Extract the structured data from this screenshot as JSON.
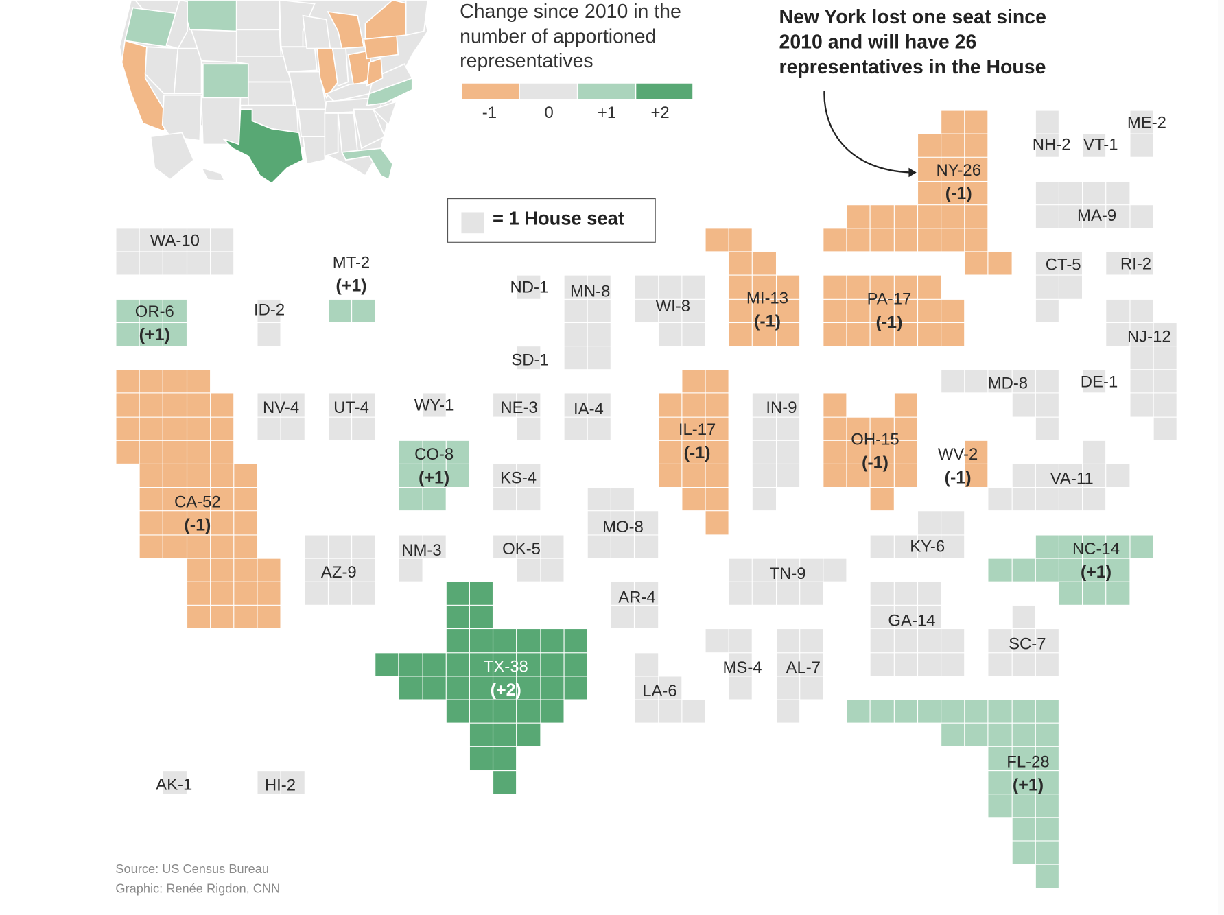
{
  "colors": {
    "minus1": "#f2b887",
    "zero": "#e4e4e4",
    "plus1": "#abd4bc",
    "plus2": "#58a874",
    "tile_border": "#ffffff"
  },
  "legend": {
    "title": "Change since 2010 in the number of apportioned representatives",
    "items": [
      {
        "label": "-1",
        "change": -1
      },
      {
        "label": "0",
        "change": 0
      },
      {
        "label": "+1",
        "change": 1
      },
      {
        "label": "+2",
        "change": 2
      }
    ],
    "seat_key": "= 1 House seat"
  },
  "annotation": {
    "text": "New York lost one seat since 2010 and will have 26 representatives in the House"
  },
  "states": [
    {
      "abbr": "WA",
      "seats": 10,
      "change": 0,
      "label": "WA-10"
    },
    {
      "abbr": "OR",
      "seats": 6,
      "change": 1,
      "label": "OR-6",
      "change_label": "(+1)"
    },
    {
      "abbr": "ID",
      "seats": 2,
      "change": 0,
      "label": "ID-2"
    },
    {
      "abbr": "MT",
      "seats": 2,
      "change": 1,
      "label": "MT-2",
      "change_label": "(+1)"
    },
    {
      "abbr": "CA",
      "seats": 52,
      "change": -1,
      "label": "CA-52",
      "change_label": "(-1)"
    },
    {
      "abbr": "NV",
      "seats": 4,
      "change": 0,
      "label": "NV-4"
    },
    {
      "abbr": "UT",
      "seats": 4,
      "change": 0,
      "label": "UT-4"
    },
    {
      "abbr": "WY",
      "seats": 1,
      "change": 0,
      "label": "WY-1"
    },
    {
      "abbr": "CO",
      "seats": 8,
      "change": 1,
      "label": "CO-8",
      "change_label": "(+1)"
    },
    {
      "abbr": "AZ",
      "seats": 9,
      "change": 0,
      "label": "AZ-9"
    },
    {
      "abbr": "NM",
      "seats": 3,
      "change": 0,
      "label": "NM-3"
    },
    {
      "abbr": "ND",
      "seats": 1,
      "change": 0,
      "label": "ND-1"
    },
    {
      "abbr": "SD",
      "seats": 1,
      "change": 0,
      "label": "SD-1"
    },
    {
      "abbr": "NE",
      "seats": 3,
      "change": 0,
      "label": "NE-3"
    },
    {
      "abbr": "KS",
      "seats": 4,
      "change": 0,
      "label": "KS-4"
    },
    {
      "abbr": "OK",
      "seats": 5,
      "change": 0,
      "label": "OK-5"
    },
    {
      "abbr": "TX",
      "seats": 38,
      "change": 2,
      "label": "TX-38",
      "change_label": "(+2)"
    },
    {
      "abbr": "MN",
      "seats": 8,
      "change": 0,
      "label": "MN-8"
    },
    {
      "abbr": "IA",
      "seats": 4,
      "change": 0,
      "label": "IA-4"
    },
    {
      "abbr": "MO",
      "seats": 8,
      "change": 0,
      "label": "MO-8"
    },
    {
      "abbr": "AR",
      "seats": 4,
      "change": 0,
      "label": "AR-4"
    },
    {
      "abbr": "LA",
      "seats": 6,
      "change": 0,
      "label": "LA-6"
    },
    {
      "abbr": "WI",
      "seats": 8,
      "change": 0,
      "label": "WI-8"
    },
    {
      "abbr": "IL",
      "seats": 17,
      "change": -1,
      "label": "IL-17",
      "change_label": "(-1)"
    },
    {
      "abbr": "MI",
      "seats": 13,
      "change": -1,
      "label": "MI-13",
      "change_label": "(-1)"
    },
    {
      "abbr": "IN",
      "seats": 9,
      "change": 0,
      "label": "IN-9"
    },
    {
      "abbr": "OH",
      "seats": 15,
      "change": -1,
      "label": "OH-15",
      "change_label": "(-1)"
    },
    {
      "abbr": "KY",
      "seats": 6,
      "change": 0,
      "label": "KY-6"
    },
    {
      "abbr": "TN",
      "seats": 9,
      "change": 0,
      "label": "TN-9"
    },
    {
      "abbr": "MS",
      "seats": 4,
      "change": 0,
      "label": "MS-4"
    },
    {
      "abbr": "AL",
      "seats": 7,
      "change": 0,
      "label": "AL-7"
    },
    {
      "abbr": "GA",
      "seats": 14,
      "change": 0,
      "label": "GA-14"
    },
    {
      "abbr": "FL",
      "seats": 28,
      "change": 1,
      "label": "FL-28",
      "change_label": "(+1)"
    },
    {
      "abbr": "SC",
      "seats": 7,
      "change": 0,
      "label": "SC-7"
    },
    {
      "abbr": "NC",
      "seats": 14,
      "change": 1,
      "label": "NC-14",
      "change_label": "(+1)"
    },
    {
      "abbr": "VA",
      "seats": 11,
      "change": 0,
      "label": "VA-11"
    },
    {
      "abbr": "WV",
      "seats": 2,
      "change": -1,
      "label": "WV-2",
      "change_label": "(-1)"
    },
    {
      "abbr": "PA",
      "seats": 17,
      "change": -1,
      "label": "PA-17",
      "change_label": "(-1)"
    },
    {
      "abbr": "NY",
      "seats": 26,
      "change": -1,
      "label": "NY-26",
      "change_label": "(-1)"
    },
    {
      "abbr": "MD",
      "seats": 8,
      "change": 0,
      "label": "MD-8"
    },
    {
      "abbr": "DE",
      "seats": 1,
      "change": 0,
      "label": "DE-1"
    },
    {
      "abbr": "NJ",
      "seats": 12,
      "change": 0,
      "label": "NJ-12"
    },
    {
      "abbr": "CT",
      "seats": 5,
      "change": 0,
      "label": "CT-5"
    },
    {
      "abbr": "RI",
      "seats": 2,
      "change": 0,
      "label": "RI-2"
    },
    {
      "abbr": "MA",
      "seats": 9,
      "change": 0,
      "label": "MA-9"
    },
    {
      "abbr": "VT",
      "seats": 1,
      "change": 0,
      "label": "VT-1"
    },
    {
      "abbr": "NH",
      "seats": 2,
      "change": 0,
      "label": "NH-2"
    },
    {
      "abbr": "ME",
      "seats": 2,
      "change": 0,
      "label": "ME-2"
    },
    {
      "abbr": "AK",
      "seats": 1,
      "change": 0,
      "label": "AK-1"
    },
    {
      "abbr": "HI",
      "seats": 2,
      "change": 0,
      "label": "HI-2"
    }
  ],
  "footer": {
    "source": "Source: US Census Bureau",
    "credit": "Graphic: Renée Rigdon, CNN"
  }
}
